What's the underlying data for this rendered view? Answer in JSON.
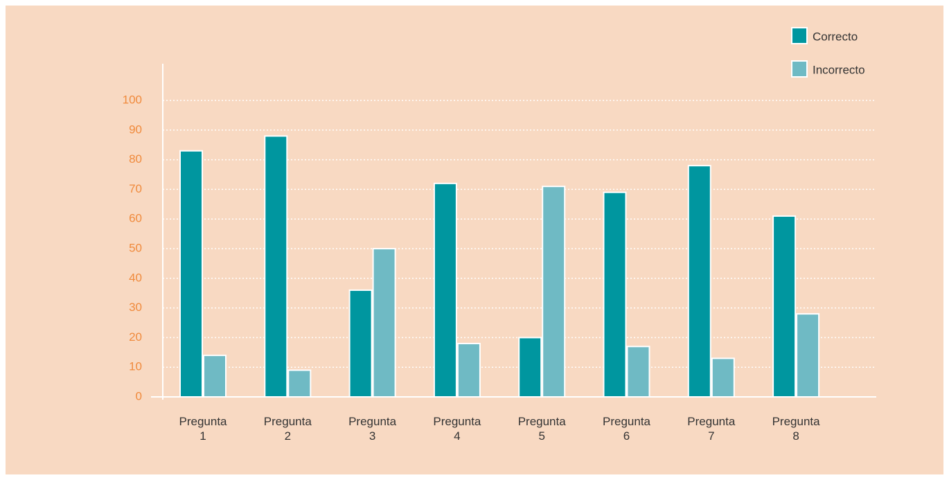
{
  "chart_data": {
    "type": "bar",
    "categories": [
      "Pregunta 1",
      "Pregunta 2",
      "Pregunta 3",
      "Pregunta 4",
      "Pregunta 5",
      "Pregunta 6",
      "Pregunta 7",
      "Pregunta 8"
    ],
    "series": [
      {
        "name": "Correcto",
        "color": "#00969f",
        "values": [
          83,
          88,
          36,
          72,
          20,
          69,
          78,
          61
        ]
      },
      {
        "name": "Incorrecto",
        "color": "#6fbac4",
        "values": [
          14,
          9,
          50,
          18,
          71,
          17,
          13,
          28
        ]
      }
    ],
    "ylim": [
      0,
      100
    ],
    "yticks": [
      0,
      10,
      20,
      30,
      40,
      50,
      60,
      70,
      80,
      90,
      100
    ],
    "grid": true,
    "legend": "upper right"
  }
}
